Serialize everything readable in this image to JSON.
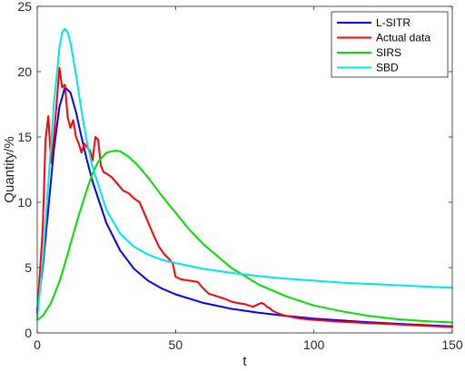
{
  "chart_data": {
    "type": "line",
    "xlabel": "t",
    "ylabel": "Quantity/%",
    "xlim": [
      0,
      150
    ],
    "ylim": [
      0,
      25
    ],
    "xticks": [
      0,
      50,
      100,
      150
    ],
    "yticks": [
      0,
      5,
      10,
      15,
      20,
      25
    ],
    "grid": false,
    "legend_position": "top-right",
    "series": [
      {
        "name": "L-SITR",
        "color": "#0000ff",
        "x": [
          0,
          2,
          4,
          6,
          8,
          10,
          12,
          14,
          16,
          18,
          20,
          25,
          30,
          35,
          40,
          45,
          50,
          60,
          70,
          80,
          90,
          100,
          110,
          120,
          130,
          140,
          150
        ],
        "y": [
          1.8,
          5.0,
          9.5,
          14.0,
          17.3,
          18.8,
          18.4,
          16.9,
          15.0,
          13.2,
          11.6,
          8.4,
          6.3,
          4.9,
          4.0,
          3.4,
          2.95,
          2.3,
          1.85,
          1.55,
          1.3,
          1.1,
          0.95,
          0.82,
          0.7,
          0.6,
          0.5
        ]
      },
      {
        "name": "Actual data",
        "color": "#ff0000",
        "x": [
          0,
          2,
          3,
          4,
          5,
          6,
          7,
          8,
          9,
          10,
          11,
          12,
          13,
          14,
          15,
          16,
          17,
          18,
          19,
          20,
          21,
          22,
          23,
          24,
          25,
          27,
          29,
          31,
          33,
          35,
          37,
          38,
          40,
          42,
          44,
          46,
          48,
          49,
          50,
          52,
          55,
          58,
          60,
          62,
          65,
          68,
          70,
          72,
          75,
          78,
          80,
          81,
          82,
          83,
          84,
          85,
          87,
          90,
          95,
          100,
          110,
          120,
          130,
          140,
          150
        ],
        "y": [
          1.5,
          8.0,
          14.8,
          16.6,
          13.0,
          15.0,
          17.5,
          20.3,
          18.8,
          19.0,
          16.5,
          15.7,
          16.3,
          15.0,
          14.5,
          13.8,
          14.5,
          14.2,
          14.0,
          13.2,
          15.0,
          14.8,
          12.8,
          12.3,
          12.2,
          11.9,
          11.4,
          10.9,
          10.7,
          10.3,
          10.0,
          9.5,
          8.5,
          7.5,
          6.6,
          6.0,
          5.6,
          5.3,
          4.3,
          4.1,
          4.0,
          3.9,
          3.4,
          3.0,
          2.8,
          2.6,
          2.4,
          2.3,
          2.2,
          2.0,
          2.2,
          2.3,
          2.2,
          2.0,
          1.9,
          1.7,
          1.5,
          1.3,
          1.1,
          1.0,
          0.85,
          0.75,
          0.65,
          0.55,
          0.45
        ]
      },
      {
        "name": "SIRS",
        "color": "#00e000",
        "x": [
          0,
          2,
          5,
          8,
          10,
          12,
          15,
          18,
          20,
          22,
          25,
          28,
          30,
          33,
          36,
          40,
          45,
          50,
          55,
          60,
          70,
          80,
          90,
          100,
          110,
          120,
          130,
          140,
          150
        ],
        "y": [
          1.0,
          1.3,
          2.3,
          3.9,
          5.3,
          6.8,
          9.0,
          11.0,
          12.2,
          13.1,
          13.8,
          13.95,
          13.9,
          13.5,
          12.9,
          11.9,
          10.5,
          9.2,
          7.9,
          6.8,
          5.0,
          3.7,
          2.8,
          2.1,
          1.65,
          1.3,
          1.05,
          0.9,
          0.8
        ]
      },
      {
        "name": "SBD",
        "color": "#00e6e6",
        "x": [
          0,
          2,
          4,
          6,
          8,
          9,
          10,
          11,
          12,
          14,
          16,
          18,
          20,
          25,
          30,
          35,
          40,
          45,
          50,
          60,
          70,
          80,
          90,
          100,
          110,
          120,
          130,
          140,
          150
        ],
        "y": [
          1.2,
          5.5,
          11.5,
          17.5,
          21.8,
          23.0,
          23.3,
          23.0,
          22.2,
          19.8,
          17.0,
          14.6,
          12.7,
          9.4,
          7.6,
          6.6,
          6.0,
          5.6,
          5.35,
          4.9,
          4.6,
          4.35,
          4.15,
          4.0,
          3.85,
          3.75,
          3.65,
          3.55,
          3.45
        ]
      }
    ]
  }
}
